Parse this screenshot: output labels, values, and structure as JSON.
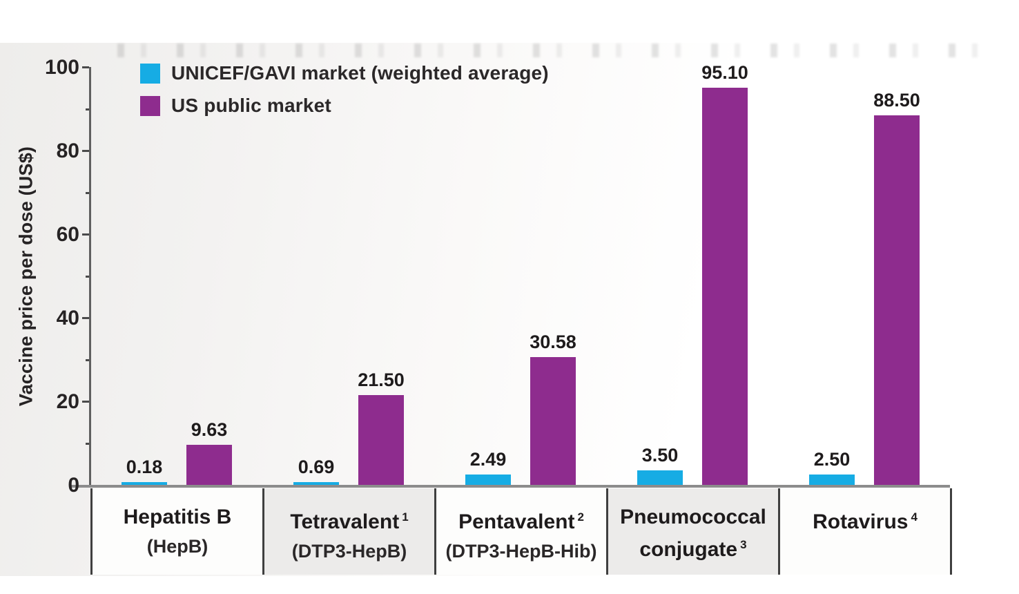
{
  "chart_data": {
    "type": "bar",
    "title": "",
    "ylabel": "Vaccine price per dose (US$)",
    "ylim": [
      0,
      100
    ],
    "yticks_major": [
      0,
      20,
      40,
      60,
      80,
      100
    ],
    "yticks_minor": [
      10,
      30,
      50,
      70,
      90
    ],
    "grid": false,
    "legend_position": "top-left",
    "legend": [
      {
        "label": "UNICEF/GAVI market (weighted average)",
        "color": "#16ace4"
      },
      {
        "label": "US public market",
        "color": "#8e2c8e"
      }
    ],
    "categories": [
      {
        "line1": "Hepatitis B",
        "line1_sup": "",
        "line2": "(HepB)",
        "line2_sup": "",
        "line2_style": "sub",
        "shaded": false
      },
      {
        "line1": "Tetravalent",
        "line1_sup": "1",
        "line2": "(DTP3-HepB)",
        "line2_sup": "",
        "line2_style": "sub",
        "shaded": true
      },
      {
        "line1": "Pentavalent",
        "line1_sup": "2",
        "line2": "(DTP3-HepB-Hib)",
        "line2_sup": "",
        "line2_style": "sub",
        "shaded": false
      },
      {
        "line1": "Pneumococcal",
        "line1_sup": "",
        "line2": "conjugate",
        "line2_sup": "3",
        "line2_style": "name",
        "shaded": true
      },
      {
        "line1": "Rotavirus",
        "line1_sup": "4",
        "line2": "",
        "line2_sup": "",
        "line2_style": "sub",
        "shaded": false
      }
    ],
    "series": [
      {
        "name": "UNICEF/GAVI market (weighted average)",
        "color": "#16ace4",
        "values": [
          0.18,
          0.69,
          2.49,
          3.5,
          2.5
        ],
        "labels": [
          "0.18",
          "0.69",
          "2.49",
          "3.50",
          "2.50"
        ]
      },
      {
        "name": "US public market",
        "color": "#8e2c8e",
        "values": [
          9.63,
          21.5,
          30.58,
          95.1,
          88.5
        ],
        "labels": [
          "9.63",
          "21.50",
          "30.58",
          "95.10",
          "88.50"
        ]
      }
    ]
  },
  "colors": {
    "gavi_cyan": "#16ace4",
    "us_purple": "#8e2c8e",
    "cell_shaded": "#ecebea",
    "cell_plain": "#fdfdfc",
    "axis_gray": "#8c8c8c",
    "text": "#1e1b1c"
  }
}
